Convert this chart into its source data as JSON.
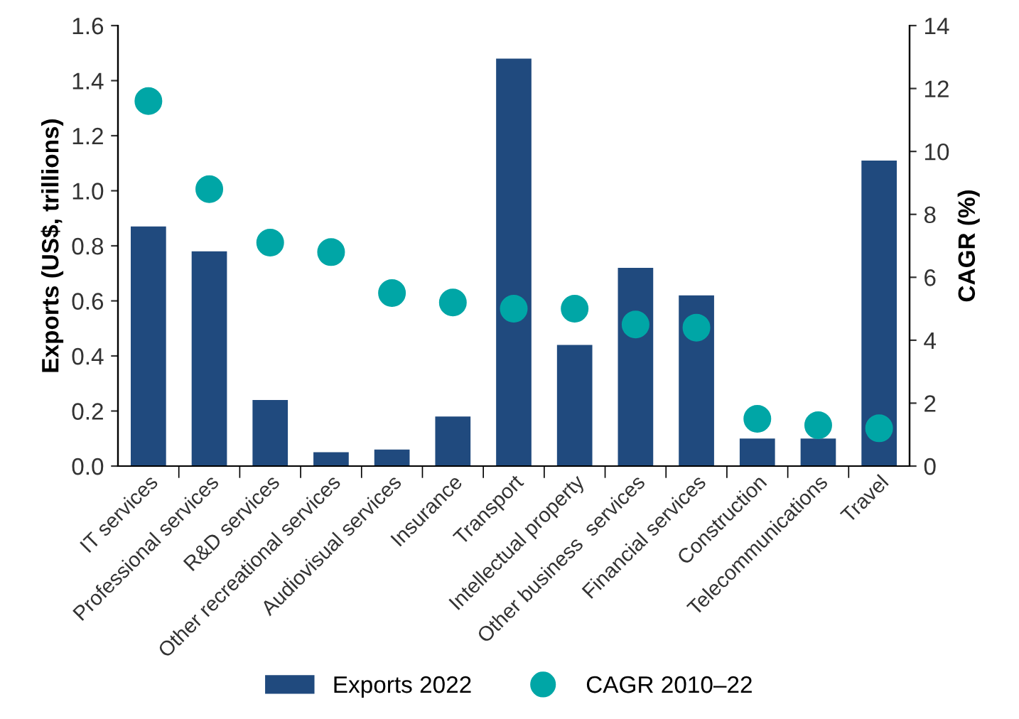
{
  "chart_data": {
    "type": "bar",
    "categories": [
      "IT services",
      "Professional services",
      "R&D services",
      "Other recreational services",
      "Audiovisual services",
      "Insurance",
      "Transport",
      "Intellectual property",
      "Other business  services",
      "Financial services",
      "Construction",
      "Telecommunications",
      "Travel"
    ],
    "series": [
      {
        "name": "Exports 2022",
        "color": "#204a7e",
        "values": [
          0.87,
          0.78,
          0.24,
          0.05,
          0.06,
          0.18,
          1.48,
          0.44,
          0.72,
          0.62,
          0.1,
          0.1,
          1.11
        ]
      },
      {
        "name": "CAGR 2010–22",
        "type": "scatter",
        "axis": "y2",
        "color": "#00a6a6",
        "marker": "circle",
        "values": [
          11.6,
          8.8,
          7.1,
          6.8,
          5.5,
          5.2,
          5.0,
          5.0,
          4.5,
          4.4,
          1.5,
          1.3,
          1.2
        ]
      }
    ],
    "ylabel": "Exports (US$, trillions)",
    "y2label": "CAGR (%)",
    "ylim": [
      0,
      1.6
    ],
    "yticks": [
      {
        "value": 0,
        "label": "0.0"
      },
      {
        "value": 0.2,
        "label": "0.2"
      },
      {
        "value": 0.4,
        "label": "0.4"
      },
      {
        "value": 0.6,
        "label": "0.6"
      },
      {
        "value": 0.8,
        "label": "0.8"
      },
      {
        "value": 1.0,
        "label": "1.0"
      },
      {
        "value": 1.2,
        "label": "1.2"
      },
      {
        "value": 1.4,
        "label": "1.4"
      },
      {
        "value": 1.6,
        "label": "1.6"
      }
    ],
    "y2lim": [
      0,
      14
    ],
    "y2ticks": [
      0,
      2,
      4,
      6,
      8,
      10,
      12,
      14
    ],
    "grid": false,
    "legend": "bottom"
  }
}
